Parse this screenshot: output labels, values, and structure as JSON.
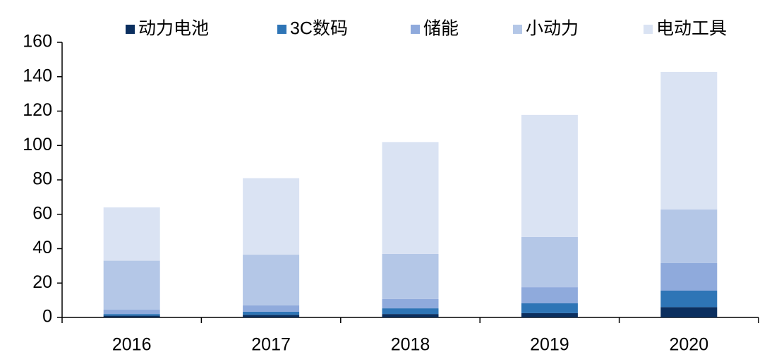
{
  "chart_data": {
    "type": "stacked-bar",
    "categories": [
      "2016",
      "2017",
      "2018",
      "2019",
      "2020"
    ],
    "series": [
      {
        "name": "动力电池",
        "color": "#0b2f5f",
        "values": [
          1,
          1.5,
          2,
          2.5,
          6
        ]
      },
      {
        "name": "3C数码",
        "color": "#2e75b6",
        "values": [
          1,
          1.8,
          3.3,
          5.7,
          9.6
        ]
      },
      {
        "name": "储能",
        "color": "#8faadc",
        "values": [
          2.5,
          3.7,
          5.4,
          9.4,
          16
        ]
      },
      {
        "name": "小动力",
        "color": "#b4c7e7",
        "values": [
          28.5,
          29.5,
          26.3,
          29.2,
          31.2
        ]
      },
      {
        "name": "电动工具",
        "color": "#dae3f3",
        "values": [
          31,
          44.5,
          65,
          71,
          80
        ]
      }
    ],
    "ylim": [
      0,
      160
    ],
    "yticks": [
      0,
      20,
      40,
      60,
      80,
      100,
      120,
      140,
      160
    ]
  }
}
